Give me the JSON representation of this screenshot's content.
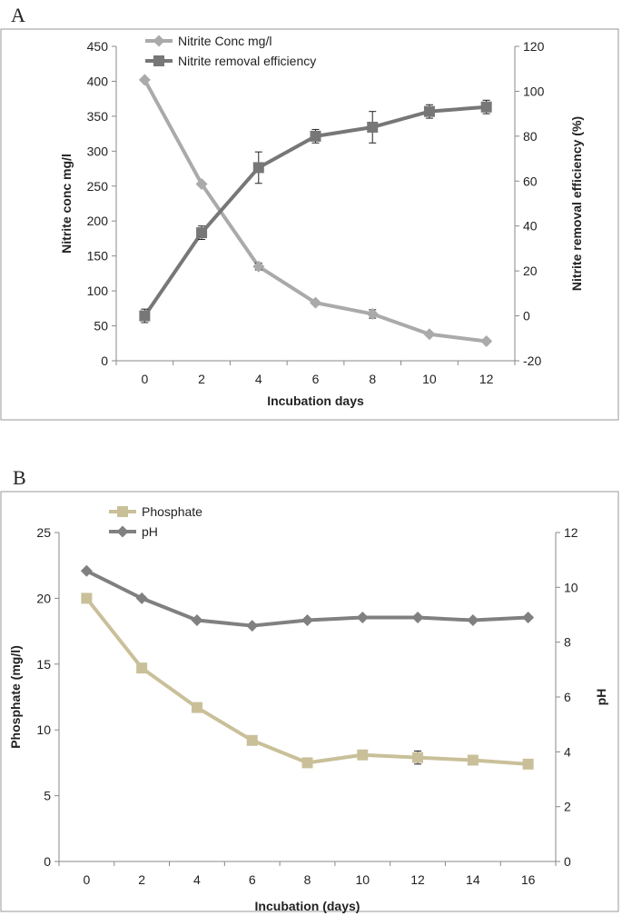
{
  "chart_data": [
    {
      "panel": "A",
      "type": "line",
      "xlabel": "Incubation days",
      "ylabel_left": "Nitrite conc mg/l",
      "ylabel_right": "Nitrite removal efficiency (%)",
      "x": [
        0,
        2,
        4,
        6,
        8,
        10,
        12
      ],
      "xlim": [
        -1,
        13
      ],
      "ylim_left": [
        0,
        450
      ],
      "ylim_right": [
        -20,
        120
      ],
      "yticks_left": [
        0,
        50,
        100,
        150,
        200,
        250,
        300,
        350,
        400,
        450
      ],
      "yticks_right": [
        -20,
        0,
        20,
        40,
        60,
        80,
        100,
        120
      ],
      "legend_position": "top-left",
      "grid": false,
      "series": [
        {
          "name": "Nitrite Conc mg/l",
          "axis": "left",
          "marker": "diamond",
          "color": "#aaaaaa",
          "values": [
            402,
            253,
            135,
            83,
            67,
            38,
            28
          ],
          "errors": [
            0,
            0,
            5,
            0,
            6,
            0,
            0
          ]
        },
        {
          "name": "Nitrite removal efficiency",
          "axis": "right",
          "marker": "square",
          "color": "#777777",
          "values": [
            0,
            37,
            66,
            80,
            84,
            91,
            93
          ],
          "errors": [
            3,
            3,
            7,
            3,
            7,
            3,
            3
          ]
        }
      ]
    },
    {
      "panel": "B",
      "type": "line",
      "xlabel": "Incubation (days)",
      "ylabel_left": "Phosphate (mg/l)",
      "ylabel_right": "pH",
      "x": [
        0,
        2,
        4,
        6,
        8,
        10,
        12,
        14,
        16
      ],
      "xlim": [
        -1,
        17
      ],
      "ylim_left": [
        0,
        25
      ],
      "ylim_right": [
        0,
        12
      ],
      "yticks_left": [
        0,
        5,
        10,
        15,
        20,
        25
      ],
      "yticks_right": [
        0,
        2,
        4,
        6,
        8,
        10,
        12
      ],
      "legend_position": "top-left",
      "grid": false,
      "series": [
        {
          "name": "Phosphate",
          "axis": "left",
          "marker": "square",
          "color": "#c9c09a",
          "values": [
            20.0,
            14.7,
            11.7,
            9.2,
            7.5,
            8.1,
            7.9,
            7.7,
            7.4
          ],
          "errors": [
            0,
            0,
            0,
            0,
            0,
            0,
            0.5,
            0.3,
            0
          ]
        },
        {
          "name": "pH",
          "axis": "right",
          "marker": "diamond",
          "color": "#808080",
          "values": [
            10.6,
            9.6,
            8.8,
            8.6,
            8.8,
            8.9,
            8.9,
            8.8,
            8.9
          ],
          "errors": [
            0,
            0,
            0,
            0,
            0,
            0,
            0,
            0,
            0
          ]
        }
      ]
    }
  ]
}
